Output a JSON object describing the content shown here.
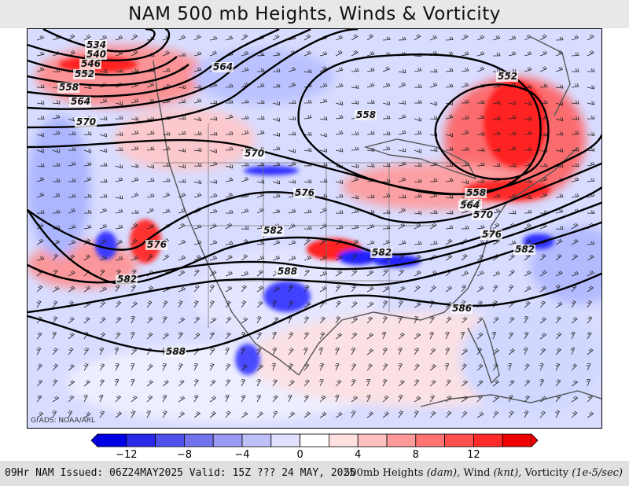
{
  "title": "NAM 500 mb Heights, Winds & Vorticity",
  "credit": "GrADS: NOAA/ARL",
  "footer": {
    "left": "09Hr NAM Issued: 06Z24MAY2025 Valid: 15Z ??? 24 MAY, 2025",
    "right_parts": {
      "heights": "500mb Heights",
      "heights_unit": "(dam),",
      "wind": "Wind",
      "wind_unit": "(knt),",
      "vort": "Vorticity",
      "vort_unit": "(1e-5/sec)"
    }
  },
  "colorbar": {
    "colors": [
      "#0000e6",
      "#2a2ae8",
      "#5050ea",
      "#7373ee",
      "#9a9af2",
      "#c0c0f8",
      "#e0e0ff",
      "#ffffff",
      "#ffe0e0",
      "#ffc0c0",
      "#ff9a9a",
      "#ff7373",
      "#ff5050",
      "#ff2a2a",
      "#f00000"
    ],
    "tick_labels": [
      "−12",
      "−8",
      "−4",
      "0",
      "4",
      "8",
      "12"
    ]
  },
  "height_contours": {
    "labels": [
      "534",
      "540",
      "546",
      "552",
      "558",
      "564",
      "570",
      "564",
      "558",
      "552",
      "558",
      "564",
      "570",
      "576",
      "582",
      "588",
      "582",
      "582",
      "586",
      "588",
      "576",
      "576",
      "570",
      "564",
      "582"
    ]
  },
  "colors": {
    "vort_pos": "#ff2020",
    "vort_neg": "#2020ff",
    "land_outline": "#555555"
  }
}
